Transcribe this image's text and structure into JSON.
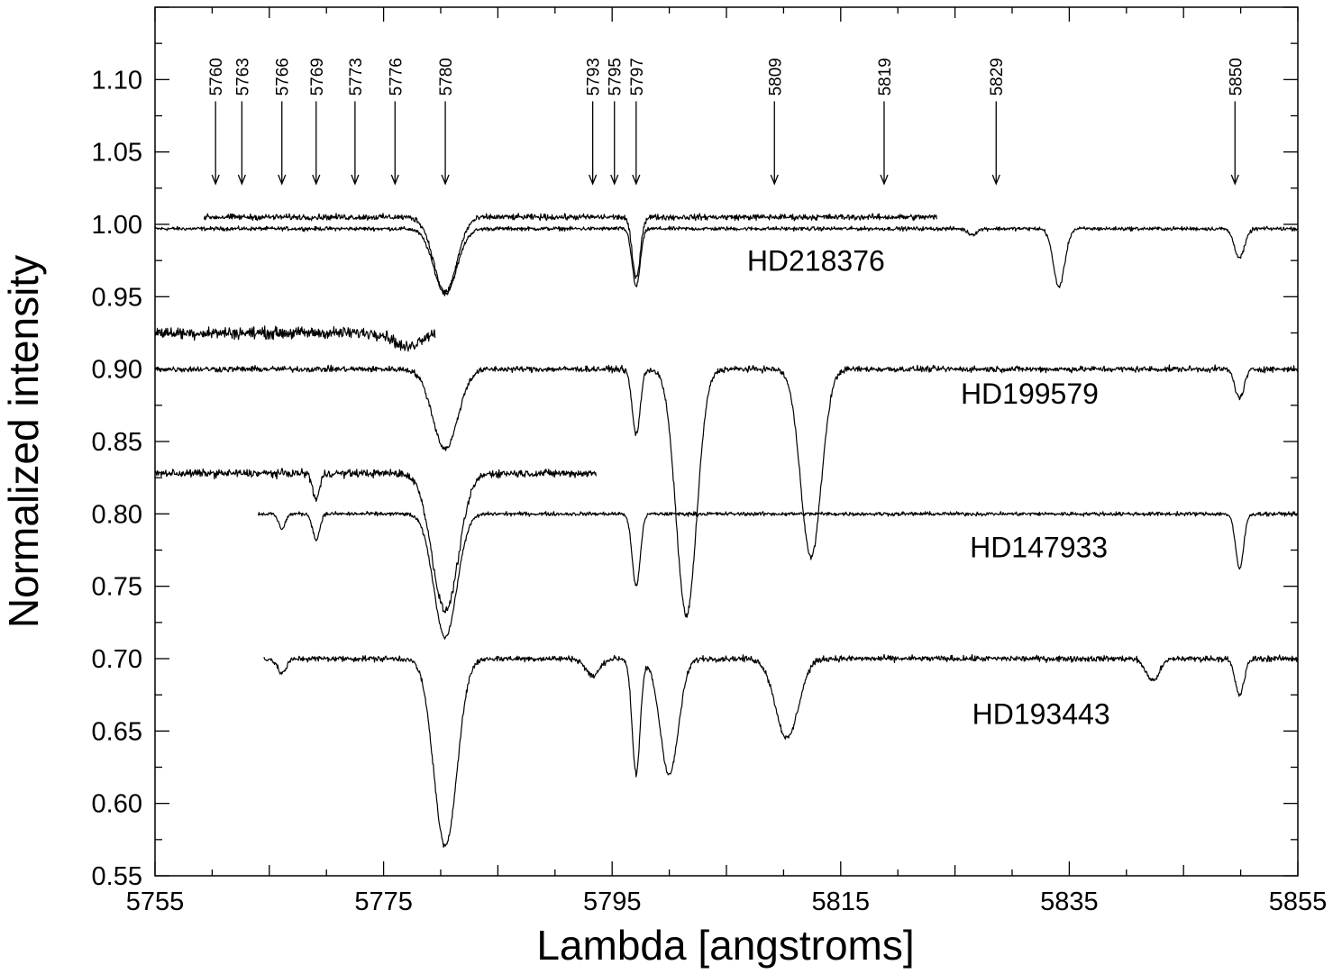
{
  "chart_data": {
    "type": "line",
    "title": "",
    "xlabel": "Lambda [angstroms]",
    "ylabel": "Normalized intensity",
    "xlim": [
      5755,
      5855
    ],
    "ylim": [
      0.55,
      1.15
    ],
    "x_ticks": [
      5755,
      5775,
      5795,
      5815,
      5835,
      5855
    ],
    "x_tick_labels": [
      "5755",
      "5775",
      "5795",
      "5815",
      "5835",
      "5855"
    ],
    "y_ticks": [
      0.55,
      0.6,
      0.65,
      0.7,
      0.75,
      0.8,
      0.85,
      0.9,
      0.95,
      1.0,
      1.05,
      1.1
    ],
    "y_tick_labels": [
      "0.55",
      "0.60",
      "0.65",
      "0.70",
      "0.75",
      "0.80",
      "0.85",
      "0.90",
      "0.95",
      "1.00",
      "1.05",
      "1.10"
    ],
    "grid": false,
    "line_color": "#000000",
    "band_markers": [
      {
        "label": "5760",
        "x": 5760.3
      },
      {
        "label": "5763",
        "x": 5762.6
      },
      {
        "label": "5766",
        "x": 5766.1
      },
      {
        "label": "5769",
        "x": 5769.1
      },
      {
        "label": "5773",
        "x": 5772.5
      },
      {
        "label": "5776",
        "x": 5776.0
      },
      {
        "label": "5780",
        "x": 5780.4
      },
      {
        "label": "5793",
        "x": 5793.3
      },
      {
        "label": "5795",
        "x": 5795.2
      },
      {
        "label": "5797",
        "x": 5797.1
      },
      {
        "label": "5809",
        "x": 5809.2
      },
      {
        "label": "5819",
        "x": 5818.8
      },
      {
        "label": "5829",
        "x": 5828.6
      },
      {
        "label": "5850",
        "x": 5849.5
      }
    ],
    "marker_arrow_range": [
      1.085,
      1.028
    ],
    "series": [
      {
        "name": "HD218376",
        "label_position": [
          5806.8,
          0.968
        ],
        "segments": [
          {
            "continuum": 0.997,
            "noise": 0.002,
            "x_start": 5755,
            "x_end": 5855,
            "dips": [
              [
                5780.4,
                0.045,
                1.0
              ],
              [
                5797.1,
                0.04,
                0.35
              ],
              [
                5834.1,
                0.04,
                0.5
              ],
              [
                5849.9,
                0.02,
                0.45
              ],
              [
                5826.5,
                0.004,
                0.4
              ]
            ]
          },
          {
            "continuum": 1.005,
            "noise": 0.003,
            "x_start": 5759.3,
            "x_end": 5823.4,
            "dips": [
              [
                5780.4,
                0.052,
                1.0
              ],
              [
                5797.1,
                0.042,
                0.35
              ]
            ]
          }
        ]
      },
      {
        "name": "HD199579",
        "label_position": [
          5825.5,
          0.876
        ],
        "segments": [
          {
            "continuum": 0.9,
            "noise": 0.003,
            "x_start": 5755,
            "x_end": 5855,
            "dips": [
              [
                5780.4,
                0.055,
                1.1
              ],
              [
                5797.1,
                0.045,
                0.35
              ],
              [
                5801.5,
                0.17,
                0.9
              ],
              [
                5812.4,
                0.13,
                0.9
              ],
              [
                5849.9,
                0.02,
                0.4
              ]
            ]
          },
          {
            "continuum": 0.925,
            "noise": 0.006,
            "x_start": 5755,
            "x_end": 5779.5,
            "dips": [
              [
                5777.0,
                0.01,
                1.0
              ]
            ]
          }
        ]
      },
      {
        "name": "HD147933",
        "label_position": [
          5826.3,
          0.77
        ],
        "segments": [
          {
            "continuum": 0.8,
            "noise": 0.002,
            "x_start": 5764,
            "x_end": 5855,
            "dips": [
              [
                5780.4,
                0.085,
                1.0
              ],
              [
                5797.1,
                0.05,
                0.35
              ],
              [
                5769.1,
                0.018,
                0.3
              ],
              [
                5766.1,
                0.01,
                0.3
              ],
              [
                5849.9,
                0.038,
                0.35
              ]
            ]
          },
          {
            "continuum": 0.828,
            "noise": 0.004,
            "x_start": 5755,
            "x_end": 5793.6,
            "dips": [
              [
                5780.4,
                0.095,
                1.15
              ],
              [
                5769.1,
                0.018,
                0.3
              ]
            ]
          }
        ]
      },
      {
        "name": "HD193443",
        "label_position": [
          5826.5,
          0.655
        ],
        "segments": [
          {
            "continuum": 0.7,
            "noise": 0.003,
            "x_start": 5764.5,
            "x_end": 5855,
            "dips": [
              [
                5780.4,
                0.13,
                1.0
              ],
              [
                5797.1,
                0.08,
                0.35
              ],
              [
                5800.0,
                0.08,
                0.8
              ],
              [
                5810.3,
                0.055,
                1.0
              ],
              [
                5842.3,
                0.015,
                0.6
              ],
              [
                5849.9,
                0.025,
                0.4
              ],
              [
                5766.1,
                0.01,
                0.4
              ],
              [
                5793.3,
                0.012,
                0.6
              ]
            ]
          }
        ]
      }
    ]
  }
}
